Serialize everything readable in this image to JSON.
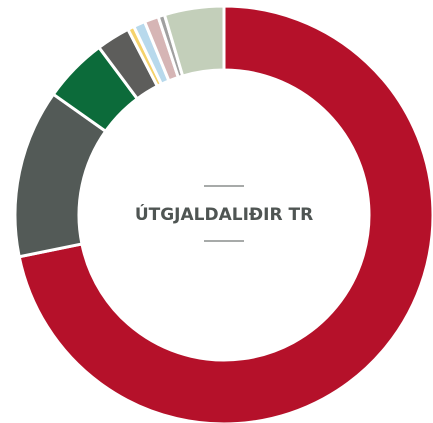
{
  "chart_data": {
    "type": "donut",
    "title": "ÚTGJALDALIÐIR TR",
    "values": [
      71.8,
      13,
      5,
      2.6,
      0.5,
      0.9,
      1.1,
      0.5,
      4.6
    ],
    "colors": [
      "#b5112a",
      "#535a57",
      "#0c6b3a",
      "#5d5d5b",
      "#f5d26b",
      "#b8d9ec",
      "#d6b5b5",
      "#a0a0a0",
      "#c3cfba"
    ]
  }
}
